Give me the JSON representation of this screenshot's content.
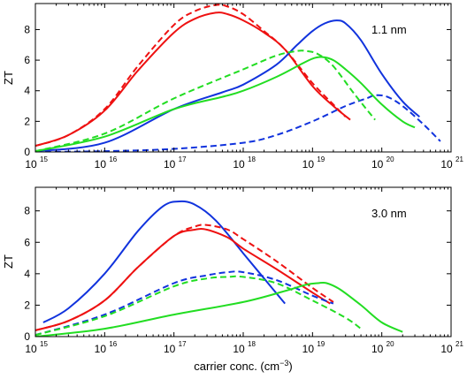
{
  "chart_data": [
    {
      "type": "line",
      "title": "",
      "annotation": "1.1 nm",
      "xlabel": "",
      "ylabel": "ZT",
      "xscale": "log",
      "xlim": [
        1000000000000000.0,
        1e+21
      ],
      "ylim": [
        0,
        9.7
      ],
      "xtick_exponents": [
        "15",
        "16",
        "17",
        "18",
        "19",
        "20",
        "21"
      ],
      "xtick_base": "10",
      "yticks": [
        "0",
        "2",
        "4",
        "6",
        "8"
      ],
      "series": [
        {
          "color": "#ee1111",
          "style": "solid",
          "x": [
            1000000000000000.0,
            3000000000000000.0,
            1e+16,
            3e+16,
            1e+17,
            2e+17,
            4e+17,
            6e+17,
            1e+18,
            2e+18,
            4e+18,
            1e+19,
            2e+19,
            3.5e+19
          ],
          "y": [
            0.4,
            1.1,
            2.7,
            5.3,
            7.8,
            8.7,
            9.1,
            9.0,
            8.6,
            7.8,
            6.7,
            4.3,
            3.0,
            2.1
          ]
        },
        {
          "color": "#ee1111",
          "style": "dashed",
          "x": [
            1000000000000000.0,
            3000000000000000.0,
            1e+16,
            3e+16,
            1e+17,
            2e+17,
            4e+17,
            6e+17,
            1e+18,
            2e+18,
            4e+18,
            1e+19,
            2e+19,
            3e+19
          ],
          "y": [
            0.4,
            1.1,
            2.8,
            5.6,
            8.3,
            9.2,
            9.6,
            9.5,
            9.0,
            7.9,
            6.7,
            4.5,
            3.1,
            2.3
          ]
        },
        {
          "color": "#1133dd",
          "style": "solid",
          "x": [
            1000000000000000.0,
            1e+16,
            1e+17,
            5e+17,
            1e+18,
            3e+18,
            6e+18,
            1e+19,
            1.5e+19,
            2.2e+19,
            3e+19,
            5e+19,
            1e+20,
            2e+20,
            3.5e+20
          ],
          "y": [
            0.05,
            0.6,
            2.8,
            3.9,
            4.4,
            5.7,
            7.0,
            7.9,
            8.4,
            8.6,
            8.4,
            7.3,
            5.1,
            3.3,
            2.3
          ]
        },
        {
          "color": "#1133dd",
          "style": "dashed",
          "x": [
            1000000000000000.0,
            1e+16,
            1e+17,
            1e+18,
            3e+18,
            1e+19,
            3e+19,
            6e+19,
            8e+19,
            1.2e+20,
            2e+20,
            4e+20,
            7e+20
          ],
          "y": [
            0.0,
            0.05,
            0.2,
            0.6,
            1.1,
            2.0,
            3.0,
            3.5,
            3.7,
            3.6,
            3.0,
            1.8,
            0.7
          ]
        },
        {
          "color": "#22dd22",
          "style": "solid",
          "x": [
            1000000000000000.0,
            1e+16,
            1e+17,
            5e+17,
            1e+18,
            3e+18,
            6e+18,
            1e+19,
            1.4e+19,
            2e+19,
            3e+19,
            5e+19,
            1e+20,
            2e+20,
            3e+20
          ],
          "y": [
            0.05,
            1.0,
            2.8,
            3.6,
            4.0,
            4.9,
            5.6,
            6.1,
            6.2,
            6.0,
            5.4,
            4.5,
            3.1,
            2.0,
            1.6
          ]
        },
        {
          "color": "#22dd22",
          "style": "dashed",
          "x": [
            1000000000000000.0,
            1e+16,
            1e+17,
            1e+18,
            3e+18,
            6e+18,
            8e+18,
            1.2e+19,
            2e+19,
            4e+19,
            8e+19
          ],
          "y": [
            0.05,
            1.2,
            3.5,
            5.4,
            6.3,
            6.6,
            6.6,
            6.4,
            5.6,
            3.8,
            2.1
          ]
        }
      ]
    },
    {
      "type": "line",
      "title": "",
      "annotation": "3.0 nm",
      "xlabel": "carrier conc. (cm",
      "xlabel_sup": "−3",
      "xlabel_end": ")",
      "ylabel": "ZT",
      "xscale": "log",
      "xlim": [
        1000000000000000.0,
        1e+21
      ],
      "ylim": [
        0,
        9.5
      ],
      "xtick_exponents": [
        "15",
        "16",
        "17",
        "18",
        "19",
        "20",
        "21"
      ],
      "xtick_base": "10",
      "yticks": [
        "0",
        "2",
        "4",
        "6",
        "8"
      ],
      "series": [
        {
          "color": "#1133dd",
          "style": "solid",
          "x": [
            1300000000000000.0,
            3000000000000000.0,
            1e+16,
            3e+16,
            7e+16,
            1.2e+17,
            2e+17,
            4e+17,
            1e+18,
            2e+18,
            4e+18
          ],
          "y": [
            0.9,
            1.8,
            4.0,
            6.7,
            8.3,
            8.6,
            8.4,
            7.4,
            5.3,
            3.7,
            2.1
          ]
        },
        {
          "color": "#ee1111",
          "style": "solid",
          "x": [
            1000000000000000.0,
            3000000000000000.0,
            1e+16,
            3e+16,
            1e+17,
            2e+17,
            3e+17,
            6e+17,
            1e+18,
            3e+18,
            1e+19,
            1.8e+19
          ],
          "y": [
            0.4,
            1.0,
            2.3,
            4.4,
            6.4,
            6.8,
            6.8,
            6.3,
            5.6,
            4.3,
            2.8,
            2.1
          ]
        },
        {
          "color": "#ee1111",
          "style": "dashed",
          "x": [
            1000000000000000.0,
            3000000000000000.0,
            1e+16,
            3e+16,
            1e+17,
            2e+17,
            3e+17,
            6e+17,
            1e+18,
            3e+18,
            1e+19,
            2e+19
          ],
          "y": [
            0.4,
            1.0,
            2.3,
            4.4,
            6.4,
            7.0,
            7.1,
            6.8,
            6.2,
            4.8,
            3.1,
            2.2
          ]
        },
        {
          "color": "#1133dd",
          "style": "dashed",
          "x": [
            1000000000000000.0,
            1e+16,
            1e+17,
            3e+17,
            6e+17,
            1e+18,
            3e+18,
            1e+19,
            2e+19
          ],
          "y": [
            0.1,
            1.4,
            3.4,
            3.9,
            4.1,
            4.1,
            3.6,
            2.6,
            2.1
          ]
        },
        {
          "color": "#22dd22",
          "style": "dashed",
          "x": [
            1000000000000000.0,
            1e+16,
            1e+17,
            3e+17,
            6e+17,
            1e+18,
            3e+18,
            1e+19,
            3e+19,
            5e+19
          ],
          "y": [
            0.1,
            1.3,
            3.2,
            3.7,
            3.8,
            3.8,
            3.4,
            2.3,
            1.2,
            0.5
          ]
        },
        {
          "color": "#22dd22",
          "style": "solid",
          "x": [
            1000000000000000.0,
            1e+16,
            1e+17,
            1e+18,
            4e+18,
            8e+18,
            1.2e+19,
            1.6e+19,
            2.5e+19,
            5e+19,
            1e+20,
            2e+20
          ],
          "y": [
            0.0,
            0.5,
            1.4,
            2.2,
            2.9,
            3.3,
            3.4,
            3.4,
            3.0,
            2.0,
            0.9,
            0.3
          ]
        }
      ]
    }
  ]
}
